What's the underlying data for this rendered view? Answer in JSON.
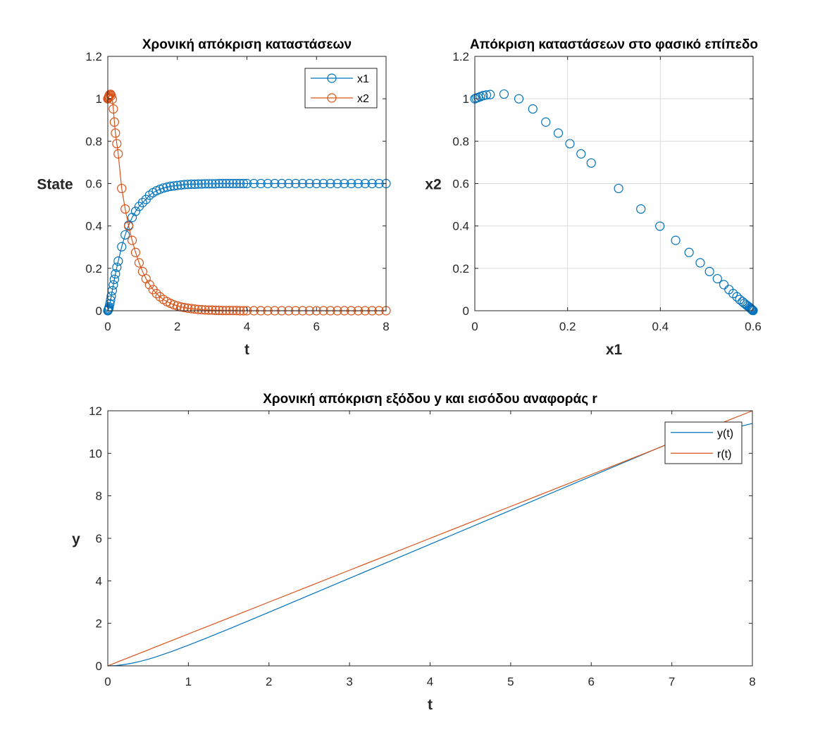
{
  "chart_data": [
    {
      "type": "line",
      "title": "Χρονική απόκριση καταστάσεων",
      "xlabel": "t",
      "ylabel": "State",
      "xlim": [
        0,
        8
      ],
      "ylim": [
        0,
        1.2
      ],
      "xticks": [
        0,
        2,
        4,
        6,
        8
      ],
      "yticks": [
        0,
        0.2,
        0.4,
        0.6,
        0.8,
        1,
        1.2
      ],
      "xtick_labels": [
        "0",
        "2",
        "4",
        "6",
        "8"
      ],
      "ytick_labels": [
        "0",
        "0.2",
        "0.4",
        "0.6",
        "0.8",
        "1",
        "1.2"
      ],
      "grid": false,
      "legend": "top-right",
      "marker": "circle",
      "x": [
        0,
        0.01,
        0.02,
        0.03,
        0.04,
        0.06,
        0.08,
        0.1,
        0.13,
        0.16,
        0.19,
        0.22,
        0.26,
        0.3,
        0.4,
        0.5,
        0.6,
        0.7,
        0.8,
        0.9,
        1.0,
        1.1,
        1.2,
        1.3,
        1.4,
        1.5,
        1.6,
        1.7,
        1.8,
        1.9,
        2.0,
        2.1,
        2.2,
        2.3,
        2.4,
        2.5,
        2.6,
        2.7,
        2.8,
        2.9,
        3.0,
        3.1,
        3.2,
        3.3,
        3.4,
        3.5,
        3.6,
        3.7,
        3.8,
        3.9,
        4.0,
        4.2,
        4.4,
        4.6,
        4.8,
        5.0,
        5.2,
        5.4,
        5.6,
        5.8,
        6.0,
        6.2,
        6.4,
        6.6,
        6.8,
        7.0,
        7.2,
        7.4,
        7.6,
        7.8,
        8.0
      ],
      "series": [
        {
          "name": "x1",
          "color": "#0072BD",
          "values": [
            0,
            0.003,
            0.007,
            0.012,
            0.018,
            0.033,
            0.05,
            0.068,
            0.095,
            0.122,
            0.148,
            0.174,
            0.205,
            0.234,
            0.302,
            0.358,
            0.403,
            0.44,
            0.469,
            0.492,
            0.51,
            0.525,
            0.545,
            0.557,
            0.566,
            0.573,
            0.579,
            0.583,
            0.587,
            0.589,
            0.591,
            0.593,
            0.595,
            0.596,
            0.597,
            0.597,
            0.598,
            0.598,
            0.599,
            0.599,
            0.599,
            0.599,
            0.6,
            0.6,
            0.6,
            0.6,
            0.6,
            0.6,
            0.6,
            0.6,
            0.6,
            0.6,
            0.6,
            0.6,
            0.6,
            0.6,
            0.6,
            0.6,
            0.6,
            0.6,
            0.6,
            0.6,
            0.6,
            0.6,
            0.6,
            0.6,
            0.6,
            0.6,
            0.6,
            0.6,
            0.6
          ]
        },
        {
          "name": "x2",
          "color": "#D95319",
          "values": [
            1.0,
            1.003,
            1.006,
            1.01,
            1.015,
            1.02,
            1.021,
            1.015,
            0.998,
            0.952,
            0.89,
            0.838,
            0.788,
            0.74,
            0.577,
            0.48,
            0.399,
            0.332,
            0.275,
            0.226,
            0.185,
            0.151,
            0.123,
            0.1,
            0.081,
            0.066,
            0.053,
            0.043,
            0.035,
            0.028,
            0.023,
            0.018,
            0.015,
            0.012,
            0.01,
            0.008,
            0.006,
            0.005,
            0.004,
            0.003,
            0.003,
            0.002,
            0.002,
            0.001,
            0.001,
            0.001,
            0.001,
            0.001,
            0,
            0,
            0,
            0,
            0,
            0,
            0,
            0,
            0,
            0,
            0,
            0,
            0,
            0,
            0,
            0,
            0,
            0,
            0,
            0,
            0,
            0,
            0
          ]
        }
      ]
    },
    {
      "type": "scatter",
      "title": "Απόκριση καταστάσεων στο φασικό επίπεδο",
      "xlabel": "x1",
      "ylabel": "x2",
      "xlim": [
        0,
        0.6
      ],
      "ylim": [
        0,
        1.2
      ],
      "xticks": [
        0,
        0.2,
        0.4,
        0.6
      ],
      "yticks": [
        0,
        0.2,
        0.4,
        0.6,
        0.8,
        1,
        1.2
      ],
      "xtick_labels": [
        "0",
        "0.2",
        "0.4",
        "0.6"
      ],
      "ytick_labels": [
        "0",
        "0.2",
        "0.4",
        "0.6",
        "0.8",
        "1",
        "1.2"
      ],
      "grid": true,
      "marker": "circle",
      "series": [
        {
          "name": "",
          "color": "#0072BD",
          "x": [
            0,
            0.003,
            0.007,
            0.012,
            0.018,
            0.025,
            0.033,
            0.063,
            0.095,
            0.125,
            0.153,
            0.18,
            0.205,
            0.229,
            0.251,
            0.31,
            0.358,
            0.399,
            0.433,
            0.462,
            0.486,
            0.506,
            0.523,
            0.537,
            0.548,
            0.557,
            0.565,
            0.571,
            0.577,
            0.581,
            0.585,
            0.588,
            0.591,
            0.593,
            0.595,
            0.596,
            0.597,
            0.598,
            0.599,
            0.6
          ],
          "y": [
            1.0,
            1.003,
            1.006,
            1.01,
            1.015,
            1.018,
            1.02,
            1.022,
            1.0,
            0.952,
            0.89,
            0.838,
            0.788,
            0.74,
            0.697,
            0.577,
            0.48,
            0.399,
            0.332,
            0.275,
            0.226,
            0.185,
            0.151,
            0.123,
            0.1,
            0.081,
            0.066,
            0.053,
            0.043,
            0.035,
            0.028,
            0.023,
            0.018,
            0.014,
            0.011,
            0.008,
            0.006,
            0.004,
            0.002,
            0.001
          ]
        }
      ]
    },
    {
      "type": "line",
      "title": "Χρονική απόκριση εξόδου y και εισόδου αναφοράς r",
      "xlabel": "t",
      "ylabel": "y",
      "xlim": [
        0,
        8
      ],
      "ylim": [
        0,
        12
      ],
      "xticks": [
        0,
        1,
        2,
        3,
        4,
        5,
        6,
        7,
        8
      ],
      "yticks": [
        0,
        2,
        4,
        6,
        8,
        10,
        12
      ],
      "xtick_labels": [
        "0",
        "1",
        "2",
        "3",
        "4",
        "5",
        "6",
        "7",
        "8"
      ],
      "ytick_labels": [
        "0",
        "2",
        "4",
        "6",
        "8",
        "10",
        "12"
      ],
      "grid": false,
      "legend": "top-right",
      "x": [
        0,
        0.1,
        0.2,
        0.3,
        0.4,
        0.5,
        0.6,
        0.8,
        1.0,
        1.2,
        1.5,
        2.0,
        2.5,
        3.0,
        3.5,
        4.0,
        5.0,
        6.0,
        7.0,
        8.0
      ],
      "series": [
        {
          "name": "y(t)",
          "color": "#0072BD",
          "values": [
            0,
            0.015,
            0.058,
            0.125,
            0.21,
            0.31,
            0.425,
            0.685,
            0.97,
            1.27,
            1.73,
            2.52,
            3.32,
            4.12,
            4.92,
            5.72,
            7.32,
            8.92,
            10.52,
            11.4
          ]
        },
        {
          "name": "r(t)",
          "color": "#D95319",
          "values": [
            0,
            0.15,
            0.3,
            0.45,
            0.6,
            0.75,
            0.9,
            1.2,
            1.5,
            1.8,
            2.25,
            3.0,
            3.75,
            4.5,
            5.25,
            6.0,
            7.5,
            9.0,
            10.5,
            12.0
          ]
        }
      ]
    }
  ]
}
